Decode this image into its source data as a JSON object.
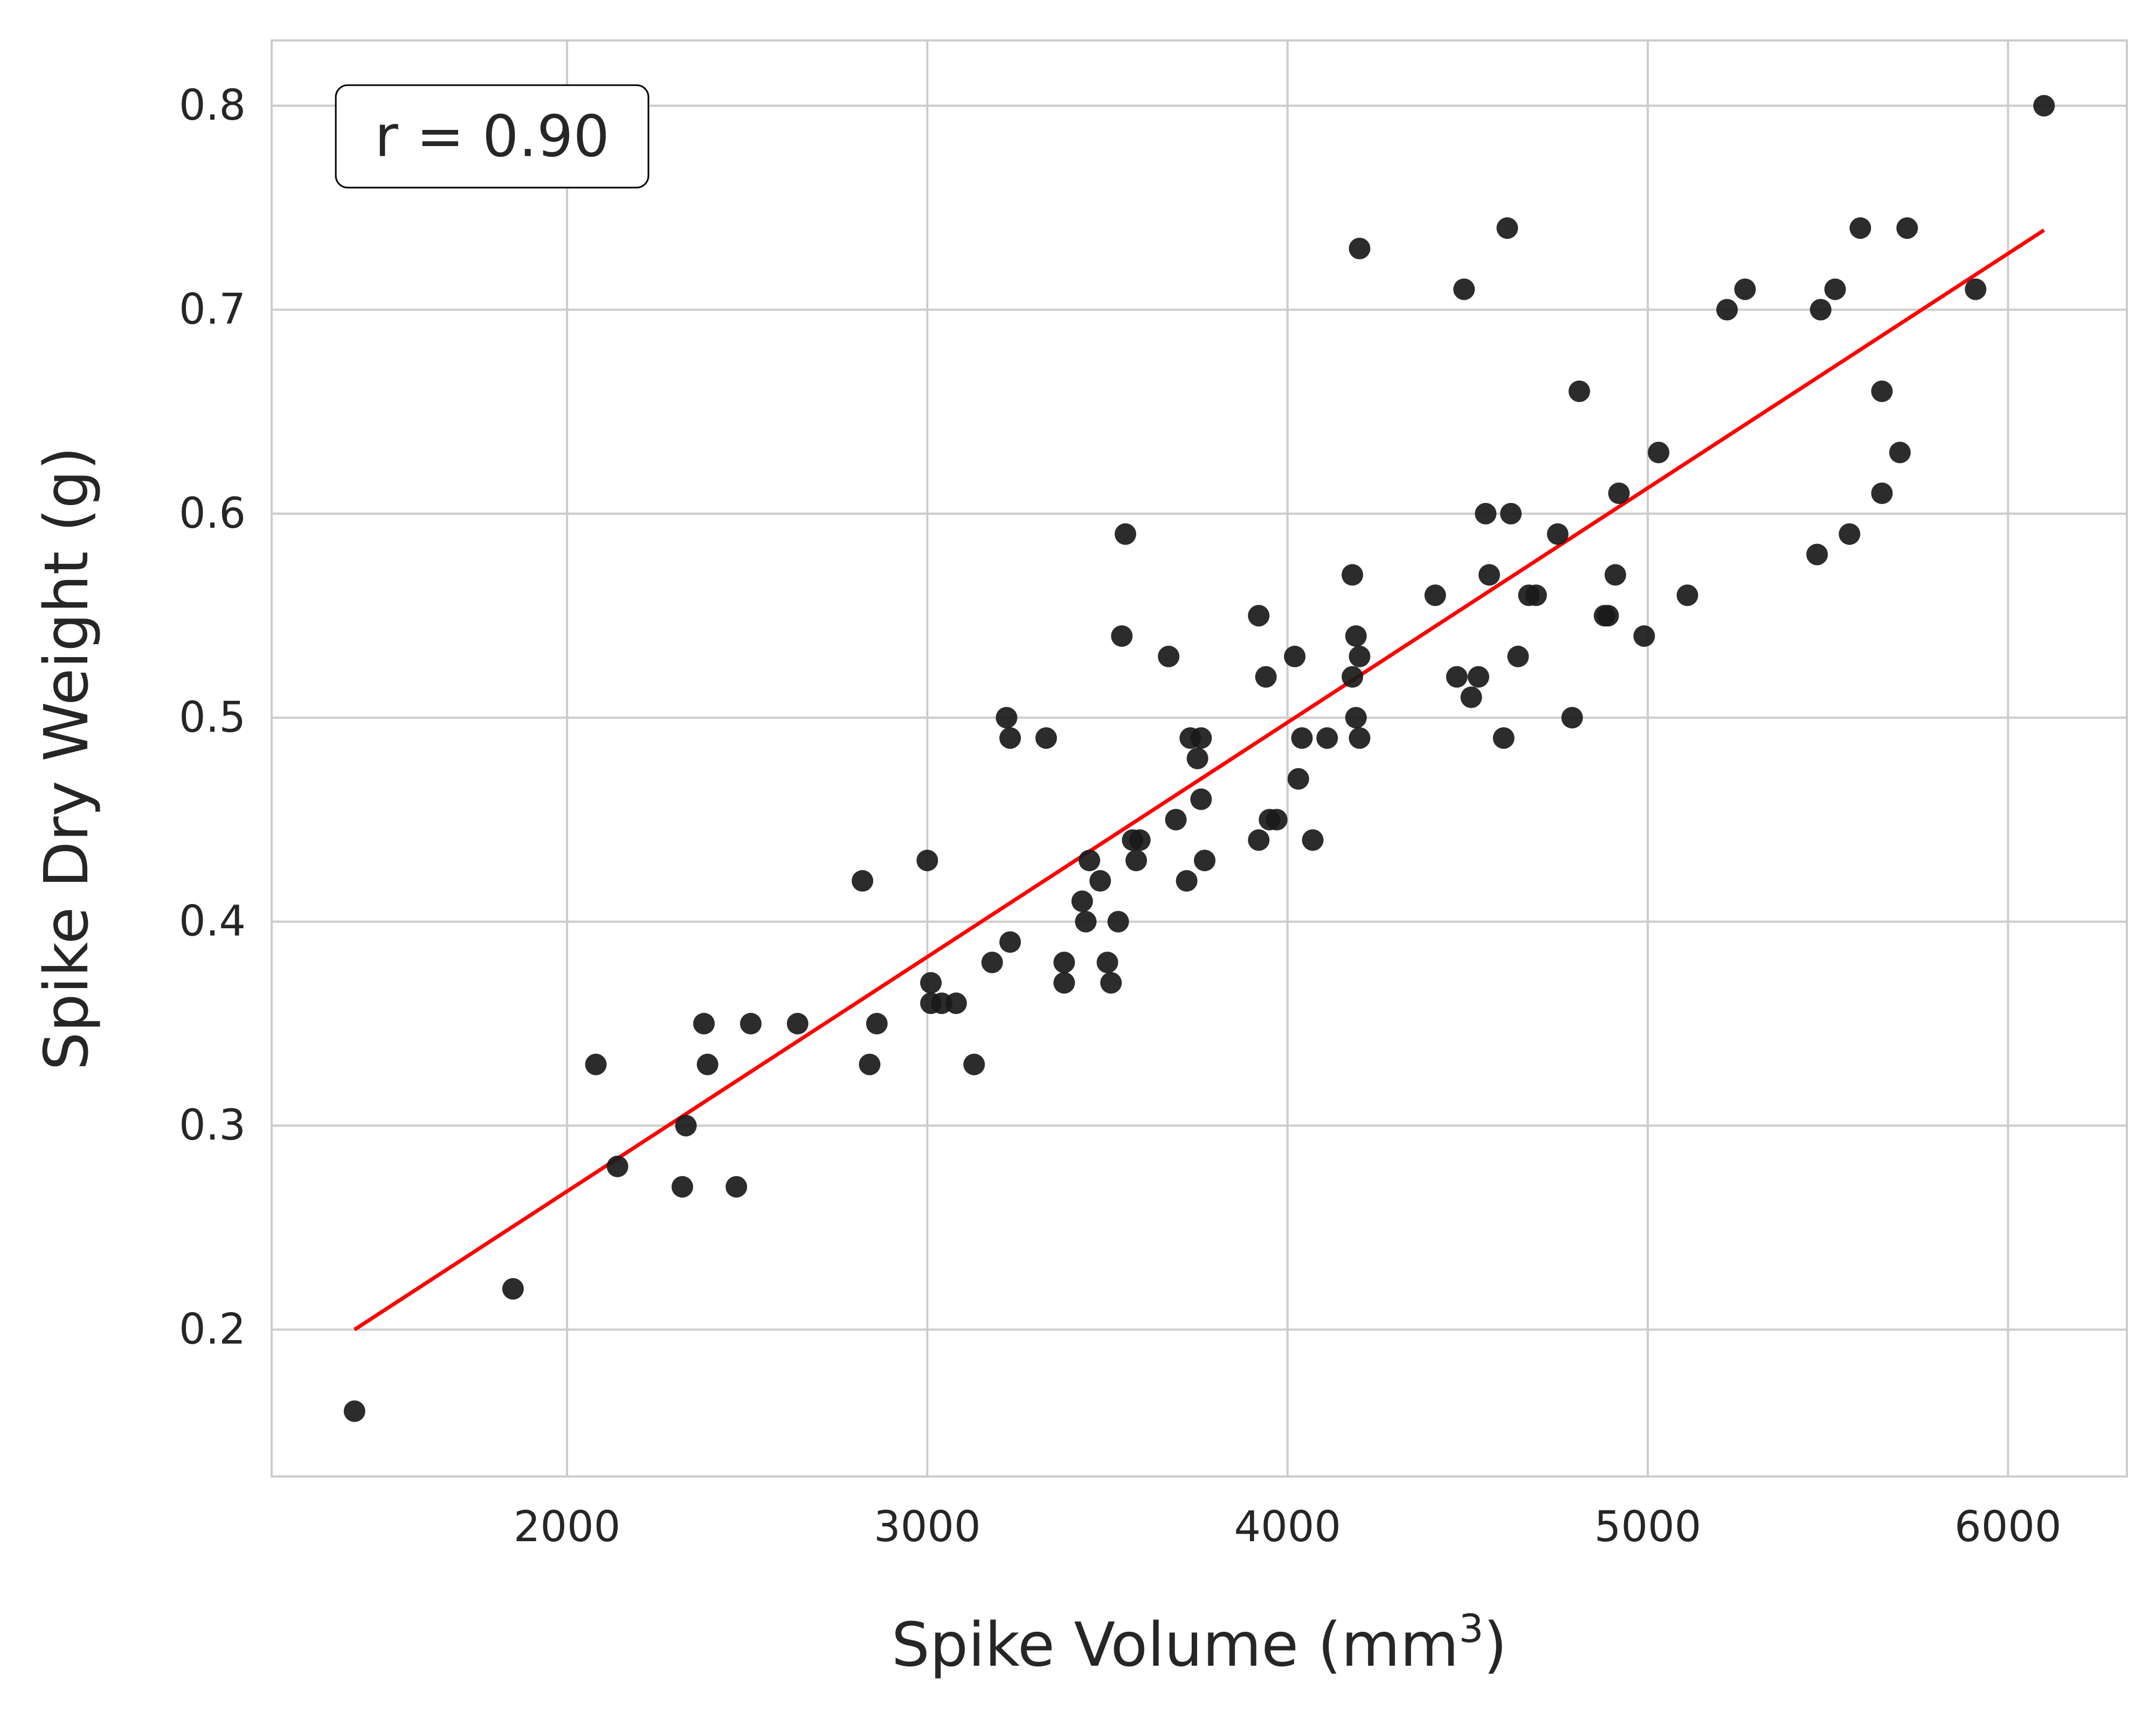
{
  "chart_data": {
    "type": "scatter",
    "title": "",
    "xlabel": "Spike Volume (mm",
    "xlabel_superscript": "3",
    "xlabel_suffix": ")",
    "ylabel": "Spike Dry Weight (g)",
    "xlim": [
      1180,
      6330
    ],
    "ylim": [
      0.128,
      0.832
    ],
    "x_ticks": [
      2000,
      3000,
      4000,
      5000,
      6000
    ],
    "y_ticks": [
      0.2,
      0.3,
      0.4,
      0.5,
      0.6,
      0.7,
      0.8
    ],
    "x_tick_labels": [
      "2000",
      "3000",
      "4000",
      "5000",
      "6000"
    ],
    "y_tick_labels": [
      "0.2",
      "0.3",
      "0.4",
      "0.5",
      "0.6",
      "0.7",
      "0.8"
    ],
    "grid": true,
    "annotation": "r = 0.90",
    "point_color": "#1a1a1a",
    "line_color": "#ff0000",
    "grid_color": "#cccccc",
    "fit_line": {
      "x": [
        1410,
        6100
      ],
      "y": [
        0.2,
        0.739
      ]
    },
    "points": [
      [
        1410,
        0.16
      ],
      [
        1850,
        0.22
      ],
      [
        2080,
        0.33
      ],
      [
        2140,
        0.28
      ],
      [
        2320,
        0.27
      ],
      [
        2330,
        0.3
      ],
      [
        2380,
        0.35
      ],
      [
        2390,
        0.33
      ],
      [
        2470,
        0.27
      ],
      [
        2510,
        0.35
      ],
      [
        2640,
        0.35
      ],
      [
        2820,
        0.42
      ],
      [
        2840,
        0.33
      ],
      [
        2860,
        0.35
      ],
      [
        3000,
        0.43
      ],
      [
        3010,
        0.37
      ],
      [
        3010,
        0.36
      ],
      [
        3040,
        0.36
      ],
      [
        3080,
        0.36
      ],
      [
        3130,
        0.33
      ],
      [
        3180,
        0.38
      ],
      [
        3220,
        0.5
      ],
      [
        3230,
        0.49
      ],
      [
        3230,
        0.39
      ],
      [
        3330,
        0.49
      ],
      [
        3380,
        0.38
      ],
      [
        3380,
        0.37
      ],
      [
        3430,
        0.41
      ],
      [
        3440,
        0.4
      ],
      [
        3450,
        0.43
      ],
      [
        3480,
        0.42
      ],
      [
        3500,
        0.38
      ],
      [
        3510,
        0.37
      ],
      [
        3530,
        0.4
      ],
      [
        3540,
        0.54
      ],
      [
        3550,
        0.59
      ],
      [
        3570,
        0.44
      ],
      [
        3580,
        0.43
      ],
      [
        3590,
        0.44
      ],
      [
        3670,
        0.53
      ],
      [
        3690,
        0.45
      ],
      [
        3720,
        0.42
      ],
      [
        3730,
        0.49
      ],
      [
        3750,
        0.48
      ],
      [
        3760,
        0.49
      ],
      [
        3760,
        0.46
      ],
      [
        3770,
        0.43
      ],
      [
        3920,
        0.44
      ],
      [
        3920,
        0.55
      ],
      [
        3940,
        0.52
      ],
      [
        3950,
        0.45
      ],
      [
        3970,
        0.45
      ],
      [
        4020,
        0.53
      ],
      [
        4030,
        0.47
      ],
      [
        4040,
        0.49
      ],
      [
        4070,
        0.44
      ],
      [
        4110,
        0.49
      ],
      [
        4180,
        0.57
      ],
      [
        4180,
        0.52
      ],
      [
        4190,
        0.5
      ],
      [
        4190,
        0.54
      ],
      [
        4200,
        0.53
      ],
      [
        4200,
        0.49
      ],
      [
        4200,
        0.73
      ],
      [
        4410,
        0.56
      ],
      [
        4470,
        0.52
      ],
      [
        4490,
        0.71
      ],
      [
        4510,
        0.51
      ],
      [
        4530,
        0.52
      ],
      [
        4550,
        0.6
      ],
      [
        4560,
        0.57
      ],
      [
        4600,
        0.49
      ],
      [
        4610,
        0.74
      ],
      [
        4620,
        0.6
      ],
      [
        4640,
        0.53
      ],
      [
        4670,
        0.56
      ],
      [
        4690,
        0.56
      ],
      [
        4750,
        0.59
      ],
      [
        4790,
        0.5
      ],
      [
        4810,
        0.66
      ],
      [
        4880,
        0.55
      ],
      [
        4890,
        0.55
      ],
      [
        4910,
        0.57
      ],
      [
        4920,
        0.61
      ],
      [
        4990,
        0.54
      ],
      [
        5030,
        0.63
      ],
      [
        5110,
        0.56
      ],
      [
        5220,
        0.7
      ],
      [
        5270,
        0.71
      ],
      [
        5470,
        0.58
      ],
      [
        5480,
        0.7
      ],
      [
        5520,
        0.71
      ],
      [
        5560,
        0.59
      ],
      [
        5590,
        0.74
      ],
      [
        5650,
        0.66
      ],
      [
        5650,
        0.61
      ],
      [
        5700,
        0.63
      ],
      [
        5720,
        0.74
      ],
      [
        5910,
        0.71
      ],
      [
        6100,
        0.8
      ]
    ]
  }
}
